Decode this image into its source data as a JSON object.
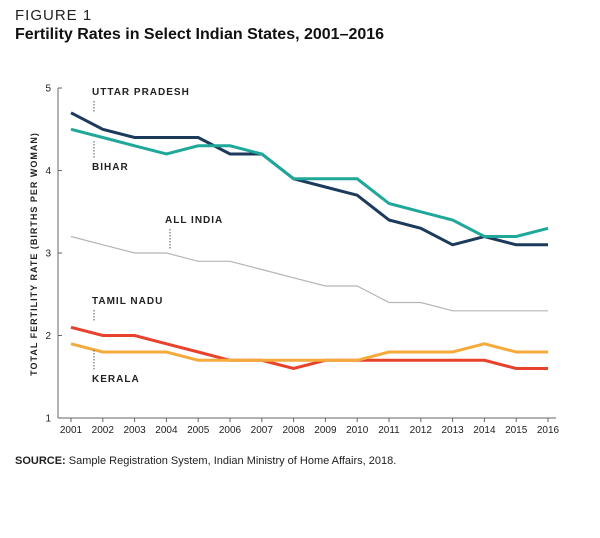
{
  "figure": {
    "kicker": "FIGURE 1",
    "title": "Fertility Rates in Select Indian States, 2001–2016"
  },
  "source": {
    "label": "SOURCE:",
    "text": "Sample Registration System, Indian Ministry of Home Affairs, 2018."
  },
  "chart_data": {
    "type": "line",
    "title": "Fertility Rates in Select Indian States, 2001–2016",
    "xlabel": "",
    "ylabel": "TOTAL FERTILITY RATE (BIRTHS PER WOMAN)",
    "ylim": [
      1,
      5
    ],
    "yticks": [
      "1",
      "2",
      "3",
      "4",
      "5"
    ],
    "grid": false,
    "x": [
      "2001",
      "2002",
      "2003",
      "2004",
      "2005",
      "2006",
      "2007",
      "2008",
      "2009",
      "2010",
      "2011",
      "2012",
      "2013",
      "2014",
      "2015",
      "2016"
    ],
    "series": [
      {
        "name": "UTTAR PRADESH",
        "color": "#1b3a5c",
        "width": 3,
        "values": [
          4.7,
          4.5,
          4.4,
          4.4,
          4.4,
          4.2,
          4.2,
          3.9,
          3.8,
          3.7,
          3.4,
          3.3,
          3.1,
          3.2,
          3.1,
          3.1
        ]
      },
      {
        "name": "BIHAR",
        "color": "#1fa89a",
        "width": 3,
        "values": [
          4.5,
          4.4,
          4.3,
          4.2,
          4.3,
          4.3,
          4.2,
          3.9,
          3.9,
          3.9,
          3.6,
          3.5,
          3.4,
          3.2,
          3.2,
          3.3
        ]
      },
      {
        "name": "ALL INDIA",
        "color": "#b5b5b5",
        "width": 1.2,
        "values": [
          3.2,
          3.1,
          3.0,
          3.0,
          2.9,
          2.9,
          2.8,
          2.7,
          2.6,
          2.6,
          2.4,
          2.4,
          2.3,
          2.3,
          2.3,
          2.3
        ]
      },
      {
        "name": "TAMIL NADU",
        "color": "#e8412c",
        "width": 3,
        "values": [
          2.1,
          2.0,
          2.0,
          1.9,
          1.8,
          1.7,
          1.7,
          1.6,
          1.7,
          1.7,
          1.7,
          1.7,
          1.7,
          1.7,
          1.6,
          1.6
        ]
      },
      {
        "name": "KERALA",
        "color": "#f5ab3c",
        "width": 3,
        "values": [
          1.9,
          1.8,
          1.8,
          1.8,
          1.7,
          1.7,
          1.7,
          1.7,
          1.7,
          1.7,
          1.8,
          1.8,
          1.8,
          1.9,
          1.8,
          1.8
        ]
      }
    ]
  }
}
